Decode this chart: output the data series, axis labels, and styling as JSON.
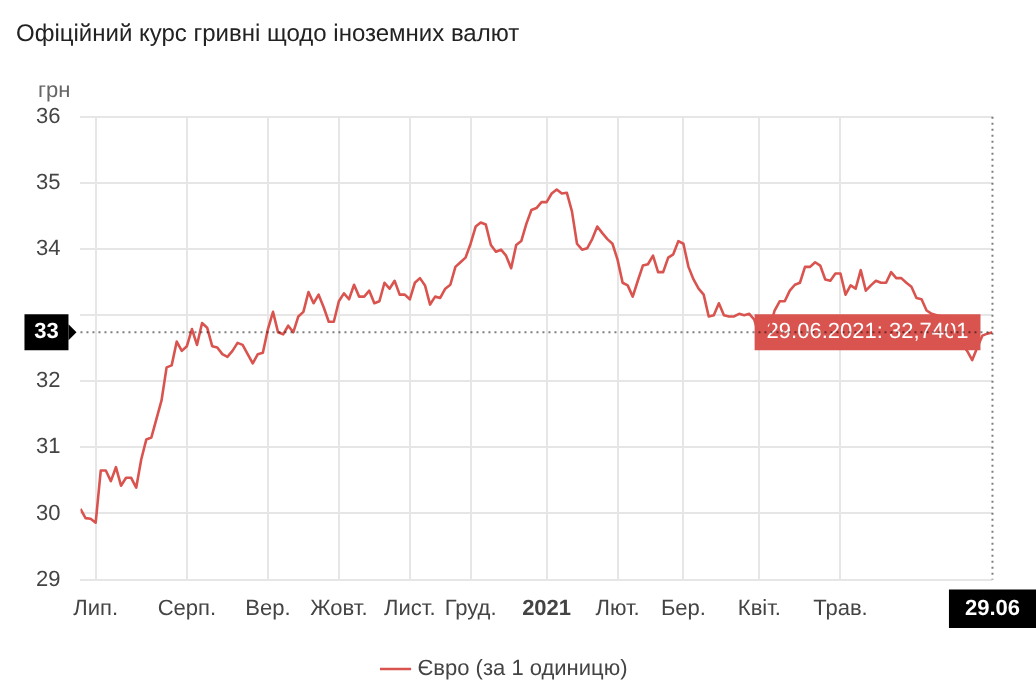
{
  "chart_data": {
    "type": "line",
    "title": "Офіційний курс гривні щодо іноземних валют",
    "ylabel": "грн",
    "categories": [
      null,
      null,
      null,
      "Лип.",
      null,
      null,
      null,
      null,
      null,
      null,
      null,
      null,
      null,
      null,
      null,
      null,
      null,
      null,
      null,
      null,
      null,
      "Серп.",
      null,
      null,
      null,
      null,
      null,
      null,
      null,
      null,
      null,
      null,
      null,
      null,
      null,
      null,
      null,
      "Вер.",
      null,
      null,
      null,
      null,
      null,
      null,
      null,
      null,
      null,
      null,
      null,
      null,
      null,
      "Жовт.",
      null,
      null,
      null,
      null,
      null,
      null,
      null,
      null,
      null,
      null,
      null,
      null,
      null,
      "Лист.",
      null,
      null,
      null,
      null,
      null,
      null,
      null,
      null,
      null,
      null,
      null,
      "Груд.",
      null,
      null,
      null,
      null,
      null,
      null,
      null,
      null,
      null,
      null,
      null,
      null,
      null,
      null,
      "2021",
      null,
      null,
      null,
      null,
      null,
      null,
      null,
      null,
      null,
      null,
      null,
      null,
      null,
      "Лют.",
      null,
      null,
      null,
      null,
      null,
      null,
      null,
      null,
      null,
      null,
      null,
      null,
      "Бер.",
      null,
      null,
      null,
      null,
      null,
      null,
      null,
      null,
      null,
      null,
      null,
      null,
      null,
      null,
      "Квіт.",
      null,
      null,
      null,
      null,
      null,
      null,
      null,
      null,
      null,
      null,
      null,
      null,
      null,
      null,
      null,
      "Трав.",
      null,
      null,
      null,
      null,
      null,
      null,
      null,
      null,
      null,
      null,
      null,
      null,
      null,
      null,
      null,
      null,
      null,
      null,
      null,
      null,
      null,
      null,
      null,
      null,
      null,
      null,
      null,
      null,
      null,
      "29.06"
    ],
    "ylim": [
      29,
      36
    ],
    "yticks": [
      29,
      30,
      31,
      32,
      {
        "value": 33,
        "label": null
      },
      34,
      35,
      36
    ],
    "grid": true,
    "legend": "bottom",
    "series": [
      {
        "name": "Євро (за 1 одиницю)",
        "color": "#d9534f",
        "values": [
          30.07,
          29.93,
          29.92,
          29.86,
          30.65,
          30.65,
          30.49,
          30.7,
          30.42,
          30.54,
          30.54,
          30.39,
          30.82,
          31.12,
          31.15,
          31.43,
          31.71,
          32.21,
          32.24,
          32.6,
          32.46,
          32.53,
          32.79,
          32.55,
          32.88,
          32.81,
          32.53,
          32.51,
          32.41,
          32.37,
          32.46,
          32.58,
          32.55,
          32.41,
          32.27,
          32.41,
          32.43,
          32.79,
          33.05,
          32.74,
          32.71,
          32.84,
          32.74,
          32.98,
          33.05,
          33.35,
          33.18,
          33.31,
          33.12,
          32.9,
          32.9,
          33.21,
          33.33,
          33.24,
          33.46,
          33.28,
          33.28,
          33.37,
          33.18,
          33.21,
          33.49,
          33.4,
          33.52,
          33.31,
          33.31,
          33.24,
          33.49,
          33.56,
          33.45,
          33.16,
          33.28,
          33.26,
          33.4,
          33.46,
          33.73,
          33.8,
          33.87,
          34.08,
          34.34,
          34.4,
          34.37,
          34.06,
          33.96,
          33.99,
          33.9,
          33.71,
          34.06,
          34.12,
          34.38,
          34.59,
          34.62,
          34.71,
          34.71,
          34.84,
          34.9,
          34.84,
          34.85,
          34.57,
          34.08,
          33.99,
          34.01,
          34.15,
          34.34,
          34.24,
          34.15,
          34.08,
          33.84,
          33.49,
          33.45,
          33.28,
          33.52,
          33.75,
          33.77,
          33.9,
          33.65,
          33.65,
          33.87,
          33.92,
          34.12,
          34.08,
          33.73,
          33.54,
          33.4,
          33.31,
          32.98,
          33.0,
          33.18,
          33.0,
          32.98,
          32.98,
          33.02,
          33.0,
          33.02,
          32.93,
          32.68,
          32.71,
          32.79,
          33.07,
          33.21,
          33.21,
          33.37,
          33.46,
          33.49,
          33.73,
          33.73,
          33.8,
          33.75,
          33.54,
          33.52,
          33.63,
          33.63,
          33.31,
          33.45,
          33.4,
          33.68,
          33.37,
          33.45,
          33.52,
          33.49,
          33.49,
          33.65,
          33.56,
          33.56,
          33.49,
          33.43,
          33.26,
          33.24,
          33.07,
          33.02,
          33.0,
          32.98,
          32.96,
          32.79,
          32.55,
          32.55,
          32.46,
          32.32,
          32.51,
          32.69,
          32.72,
          32.7401
        ]
      }
    ],
    "ref_lines": [
      {
        "axis": "y",
        "value": 32.7401,
        "label": "33",
        "line_style": "dotted",
        "color": "#000000"
      },
      {
        "axis": "x",
        "value": "29.06",
        "line_style": "dotted",
        "color": "#000000"
      }
    ],
    "annotations": [
      {
        "text": "29.06.2021: 32,7401",
        "x": "29.06",
        "y": 32.7401
      }
    ]
  }
}
